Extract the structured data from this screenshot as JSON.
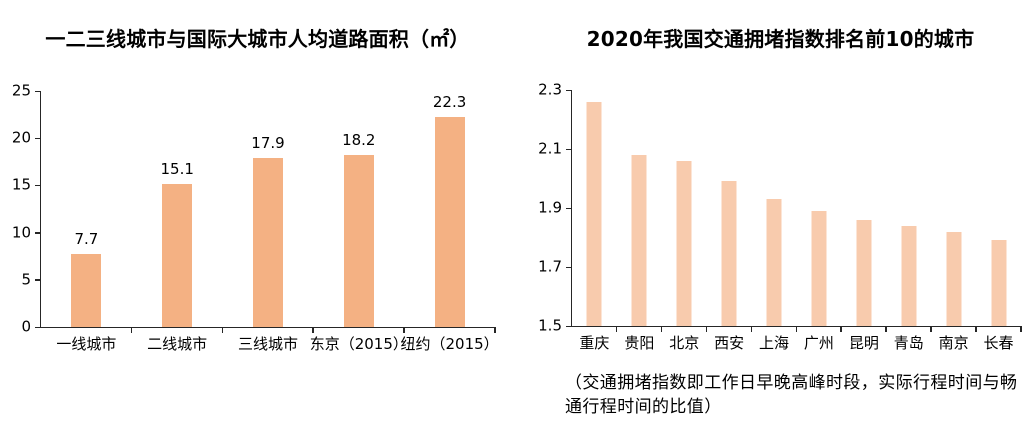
{
  "page": {
    "background": "#ffffff",
    "text_color": "#000000"
  },
  "chart_data": [
    {
      "type": "bar",
      "title": "一二三线城市与国际大城市人均道路面积（㎡）",
      "categories": [
        "一线城市",
        "二线城市",
        "三线城市",
        "东京（2015）",
        "纽约（2015）"
      ],
      "values": [
        7.7,
        15.1,
        17.9,
        18.2,
        22.3
      ],
      "value_labels": [
        "7.7",
        "15.1",
        "17.9",
        "18.2",
        "22.3"
      ],
      "ylim": [
        0,
        25
      ],
      "yticks": [
        0,
        5,
        10,
        15,
        20,
        25
      ],
      "ytick_labels": [
        "0",
        "5",
        "10",
        "15",
        "20",
        "25"
      ],
      "show_value_labels": true,
      "bar_color": "#F4B183",
      "axis_color": "#262626",
      "grid": false,
      "legend": "none"
    },
    {
      "type": "bar",
      "title": "2020年我国交通拥堵指数排名前10的城市",
      "categories": [
        "重庆",
        "贵阳",
        "北京",
        "西安",
        "上海",
        "广州",
        "昆明",
        "青岛",
        "南京",
        "长春"
      ],
      "values": [
        2.26,
        2.08,
        2.06,
        1.99,
        1.93,
        1.89,
        1.86,
        1.84,
        1.82,
        1.79
      ],
      "ylim": [
        1.5,
        2.3
      ],
      "yticks": [
        1.5,
        1.7,
        1.9,
        2.1,
        2.3
      ],
      "ytick_labels": [
        "1.5",
        "1.7",
        "1.9",
        "2.1",
        "2.3"
      ],
      "show_value_labels": false,
      "bar_color": "#F8CBAD",
      "axis_color": "#262626",
      "grid": false,
      "legend": "none",
      "footnote": "（交通拥堵指数即工作日早晚高峰时段，实际行程时间与畅\n通行程时间的比值）"
    }
  ]
}
